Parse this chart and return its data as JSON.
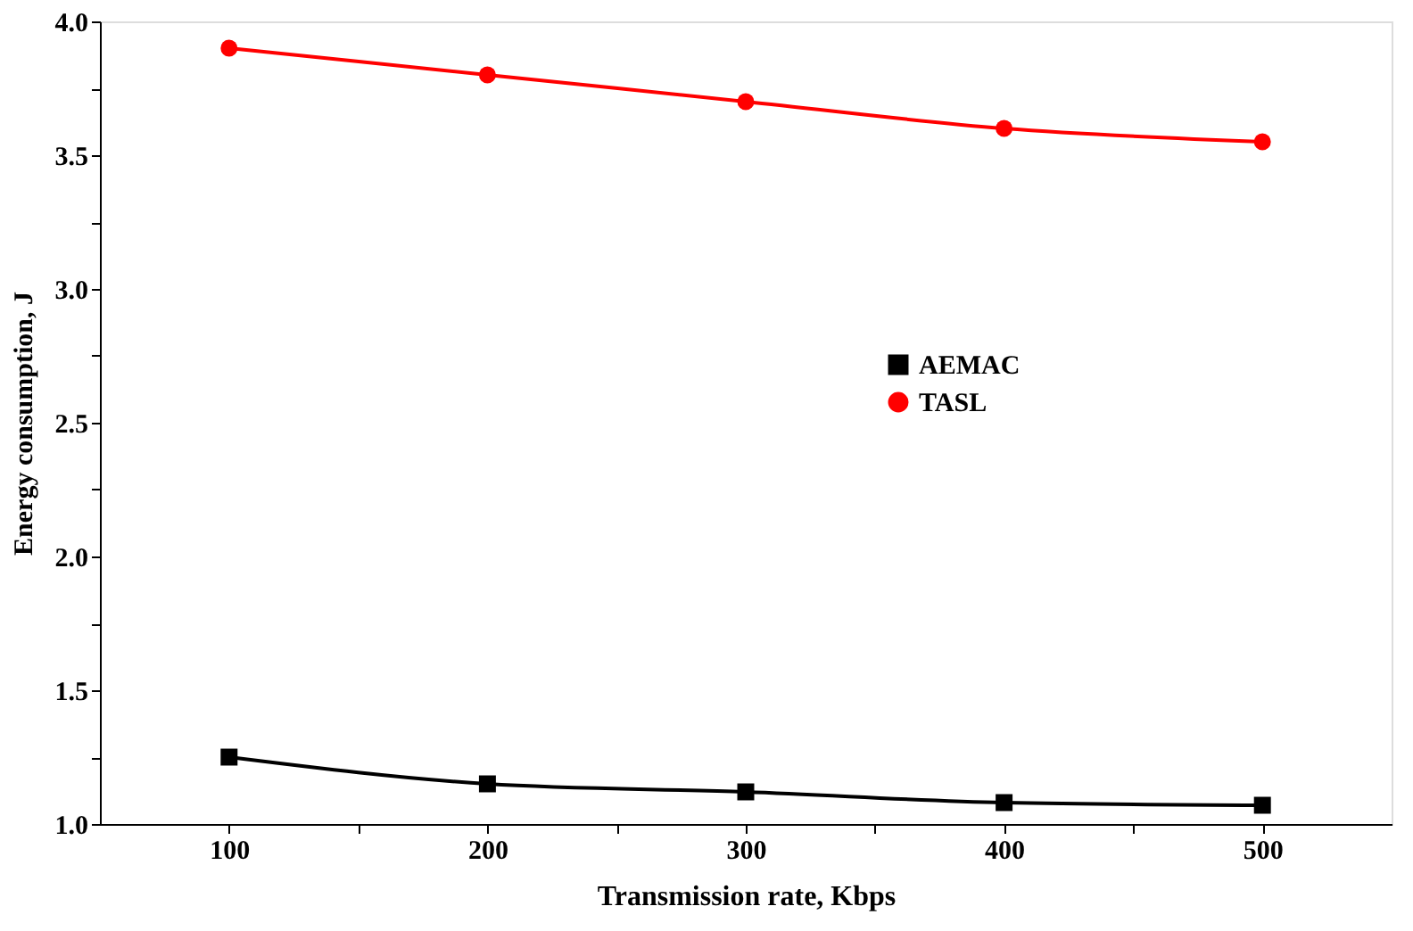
{
  "chart_data": {
    "type": "line",
    "xlabel": "Transmission rate, Kbps",
    "ylabel": "Energy consumption, J",
    "x": [
      100,
      200,
      300,
      400,
      500
    ],
    "series": [
      {
        "name": "AEMAC",
        "color": "#000000",
        "marker": "square",
        "values": [
          1.25,
          1.15,
          1.12,
          1.08,
          1.07
        ]
      },
      {
        "name": "TASL",
        "color": "#ff0000",
        "marker": "circle",
        "values": [
          3.9,
          3.8,
          3.7,
          3.6,
          3.55
        ]
      }
    ],
    "xlim": [
      50,
      550
    ],
    "xticks": [
      100,
      {
        "value": 150,
        "label": null
      },
      200,
      {
        "value": 250,
        "label": null
      },
      300,
      {
        "value": 350,
        "label": null
      },
      400,
      {
        "value": 450,
        "label": null
      },
      500
    ],
    "ylim": [
      1.0,
      4.0
    ],
    "yticks": [
      {
        "value": 1.0,
        "label": "1.0"
      },
      {
        "value": 1.25,
        "label": null
      },
      1.5,
      {
        "value": 1.75,
        "label": null
      },
      {
        "value": 2.0,
        "label": "2.0"
      },
      {
        "value": 2.25,
        "label": null
      },
      2.5,
      {
        "value": 2.75,
        "label": null
      },
      {
        "value": 3.0,
        "label": "3.0"
      },
      {
        "value": 3.25,
        "label": null
      },
      3.5,
      {
        "value": 3.75,
        "label": null
      },
      {
        "value": 4.0,
        "label": "4.0"
      }
    ],
    "grid": false,
    "legend": "right",
    "line_style": "solid"
  }
}
